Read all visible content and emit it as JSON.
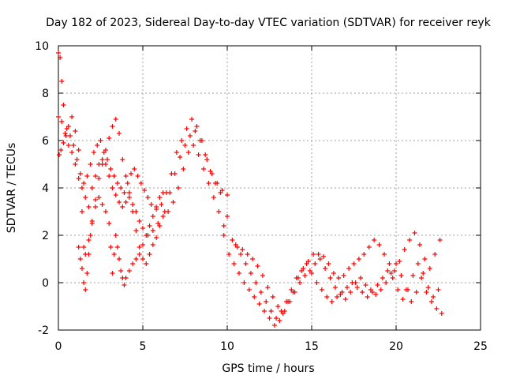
{
  "chart_data": {
    "type": "scatter",
    "title": "Day 182 of 2023, Sidereal Day-to-day VTEC variation (SDTVAR) for receiver reyk",
    "xlabel": "GPS time / hours",
    "ylabel": "SDTVAR / TECUs",
    "xlim": [
      0,
      25
    ],
    "ylim": [
      -2,
      10
    ],
    "xticks": [
      "0",
      "5",
      "10",
      "15",
      "20",
      "25"
    ],
    "yticks": [
      "-2",
      "0",
      "2",
      "4",
      "6",
      "8",
      "10"
    ],
    "grid": true,
    "marker": "+",
    "color": "#ff0000",
    "series": [
      {
        "name": "trace-1",
        "x": [
          0.0,
          0.1,
          0.2,
          0.3,
          0.5,
          0.7,
          0.9,
          1.1,
          1.3,
          1.5,
          1.7,
          1.9,
          2.1,
          2.3,
          2.5,
          2.7,
          2.9,
          3.1,
          3.3,
          3.5,
          3.7,
          3.9,
          4.1,
          4.3,
          4.5,
          4.7,
          4.9,
          5.1,
          5.3,
          5.5,
          5.8,
          6.1,
          6.4,
          6.7,
          7.0,
          7.3,
          7.6,
          7.9,
          8.2,
          8.5,
          8.8,
          9.1,
          9.4,
          9.7,
          10.0
        ],
        "y": [
          9.7,
          9.5,
          8.5,
          7.5,
          6.5,
          6.2,
          5.8,
          5.2,
          4.6,
          4.2,
          4.5,
          5.0,
          5.5,
          5.8,
          6.0,
          5.5,
          5.2,
          4.8,
          4.5,
          4.2,
          4.0,
          3.8,
          4.2,
          4.6,
          4.8,
          4.5,
          4.2,
          3.9,
          3.6,
          3.3,
          3.1,
          3.3,
          3.8,
          4.6,
          5.5,
          6.0,
          6.5,
          6.9,
          6.6,
          6.0,
          5.2,
          4.6,
          4.2,
          3.9,
          3.7
        ]
      },
      {
        "name": "trace-2",
        "x": [
          0.0,
          0.2,
          0.4,
          0.6,
          0.8,
          1.0,
          1.2,
          1.4,
          1.6,
          1.8,
          2.0,
          2.2,
          2.4,
          2.6,
          2.8,
          3.0,
          3.2,
          3.4,
          3.6,
          3.8,
          4.0,
          4.2,
          4.4,
          4.6,
          4.8,
          5.0,
          5.3,
          5.6,
          5.9,
          6.2,
          6.5,
          6.8,
          7.1,
          7.4,
          7.7,
          8.0,
          8.3,
          8.6,
          8.9,
          9.2,
          9.5,
          9.8
        ],
        "y": [
          7.0,
          6.8,
          6.3,
          5.8,
          5.5,
          5.0,
          4.4,
          4.0,
          3.6,
          3.2,
          4.0,
          4.5,
          5.0,
          5.2,
          5.0,
          4.5,
          4.0,
          3.7,
          3.4,
          3.2,
          3.4,
          3.6,
          3.3,
          3.0,
          2.6,
          2.3,
          2.0,
          2.2,
          2.5,
          2.8,
          3.0,
          3.4,
          4.0,
          4.8,
          5.5,
          5.8,
          5.4,
          4.8,
          4.2,
          3.6,
          3.0,
          2.4
        ]
      },
      {
        "name": "trace-3",
        "x": [
          0.05,
          0.15,
          0.3,
          0.45,
          0.6,
          0.8,
          1.0,
          1.2,
          1.4,
          1.5,
          1.6,
          1.8,
          2.0,
          2.2,
          2.4,
          2.6,
          2.8,
          3.0,
          3.2,
          3.4,
          3.6,
          3.8,
          4.0,
          4.2,
          4.4,
          4.6,
          4.8,
          5.0,
          5.2,
          5.4,
          5.6,
          5.8,
          6.0,
          6.3,
          6.6,
          6.9,
          7.2,
          7.5,
          7.8,
          8.1,
          8.4,
          8.7,
          9.0,
          9.3,
          9.6
        ],
        "y": [
          5.4,
          5.6,
          5.9,
          6.2,
          6.6,
          7.0,
          6.4,
          5.6,
          3.0,
          1.5,
          1.2,
          1.8,
          2.5,
          3.5,
          4.4,
          5.0,
          5.6,
          6.1,
          6.6,
          6.9,
          6.3,
          5.2,
          4.5,
          3.8,
          3.0,
          2.2,
          1.5,
          1.0,
          0.8,
          1.2,
          1.6,
          1.9,
          2.4,
          3.0,
          3.8,
          4.6,
          5.3,
          5.8,
          6.2,
          6.4,
          6.0,
          5.4,
          4.7,
          4.2,
          3.8
        ]
      },
      {
        "name": "trace-4",
        "x": [
          1.2,
          1.3,
          1.4,
          1.5,
          1.6,
          1.7,
          1.8,
          1.9,
          2.0,
          2.2,
          2.4,
          2.6,
          2.8,
          3.0,
          3.1,
          3.2,
          3.3,
          3.4,
          3.5,
          3.6,
          3.7,
          3.8,
          3.9,
          4.0,
          4.2,
          4.4,
          4.6,
          4.8,
          5.0,
          5.2,
          5.4,
          5.6,
          5.8,
          6.0,
          6.2
        ],
        "y": [
          1.5,
          1.0,
          0.6,
          0.0,
          -0.3,
          0.4,
          1.2,
          2.0,
          2.6,
          3.2,
          3.6,
          3.3,
          3.0,
          2.5,
          1.5,
          0.4,
          1.2,
          2.0,
          1.5,
          1.0,
          0.5,
          0.2,
          -0.1,
          0.2,
          0.5,
          0.8,
          1.0,
          1.2,
          1.6,
          2.0,
          2.4,
          2.8,
          3.2,
          3.6,
          3.8
        ]
      },
      {
        "name": "trace-5",
        "x": [
          10.0,
          10.3,
          10.6,
          10.9,
          11.2,
          11.5,
          11.8,
          12.1,
          12.4,
          12.7,
          13.0,
          13.3,
          13.6,
          13.9,
          14.2,
          14.5,
          14.8,
          15.1,
          15.4,
          15.7,
          16.0,
          16.3,
          16.6,
          16.9,
          17.2,
          17.5,
          17.8,
          18.1,
          18.4,
          18.7,
          19.0,
          19.3,
          19.6,
          19.9,
          20.2,
          20.5,
          20.8,
          21.1,
          21.4,
          21.7,
          22.0,
          22.3,
          22.6
        ],
        "y": [
          2.8,
          1.8,
          1.5,
          1.4,
          1.2,
          1.0,
          0.7,
          0.3,
          -0.2,
          -0.6,
          -1.0,
          -1.3,
          -0.8,
          -0.4,
          0.2,
          0.6,
          0.9,
          1.2,
          1.2,
          1.1,
          0.8,
          0.4,
          0.2,
          0.3,
          0.6,
          0.8,
          1.0,
          1.2,
          1.5,
          1.8,
          1.6,
          1.2,
          0.8,
          0.5,
          0.9,
          1.4,
          1.8,
          2.1,
          1.6,
          1.0,
          0.6,
          1.2,
          1.8
        ]
      },
      {
        "name": "trace-6",
        "x": [
          9.8,
          10.1,
          10.4,
          10.7,
          11.0,
          11.3,
          11.6,
          11.9,
          12.2,
          12.5,
          12.8,
          13.1,
          13.4,
          13.7,
          14.0,
          14.3,
          14.6,
          14.9,
          15.2,
          15.5,
          15.8,
          16.1,
          16.4,
          16.7,
          17.0,
          17.3,
          17.6,
          17.9,
          18.2,
          18.5,
          18.8,
          19.1,
          19.4,
          19.7,
          20.0,
          20.3,
          20.6,
          20.9,
          21.2,
          21.5,
          21.8,
          22.1,
          22.4,
          22.7
        ],
        "y": [
          2.0,
          1.2,
          0.8,
          0.4,
          0.0,
          -0.3,
          -0.6,
          -0.9,
          -1.2,
          -1.5,
          -1.8,
          -1.6,
          -1.2,
          -0.8,
          -0.4,
          0.0,
          0.3,
          0.5,
          0.8,
          1.0,
          0.6,
          0.2,
          -0.2,
          -0.5,
          -0.7,
          -0.4,
          0.0,
          0.2,
          -0.1,
          -0.3,
          -0.5,
          -0.3,
          0.0,
          0.4,
          0.8,
          0.3,
          -0.3,
          -0.8,
          -0.4,
          0.2,
          -0.4,
          -0.8,
          -1.1,
          -1.3
        ]
      },
      {
        "name": "trace-7",
        "x": [
          10.5,
          10.8,
          11.1,
          11.4,
          11.7,
          12.0,
          12.3,
          12.6,
          12.9,
          13.2,
          13.5,
          13.8,
          14.1,
          14.4,
          14.7,
          15.0,
          15.3,
          15.6,
          15.9,
          16.2,
          16.5,
          16.8,
          17.1,
          17.4,
          17.7,
          18.0,
          18.3,
          18.6,
          18.9,
          19.2,
          19.5,
          19.8,
          20.1,
          20.4,
          20.7,
          21.0,
          21.3,
          21.6,
          21.9,
          22.2,
          22.5
        ],
        "y": [
          1.6,
          1.2,
          0.8,
          0.4,
          0.0,
          -0.4,
          -0.8,
          -1.2,
          -1.5,
          -1.2,
          -0.8,
          -0.3,
          0.2,
          0.5,
          0.8,
          0.4,
          0.0,
          -0.3,
          -0.6,
          -0.8,
          -0.6,
          -0.4,
          -0.2,
          0.0,
          -0.2,
          -0.4,
          -0.6,
          -0.4,
          -0.1,
          0.2,
          0.5,
          0.2,
          -0.3,
          -0.7,
          -0.3,
          0.3,
          0.8,
          0.4,
          -0.2,
          -0.6,
          -0.3
        ]
      }
    ]
  }
}
